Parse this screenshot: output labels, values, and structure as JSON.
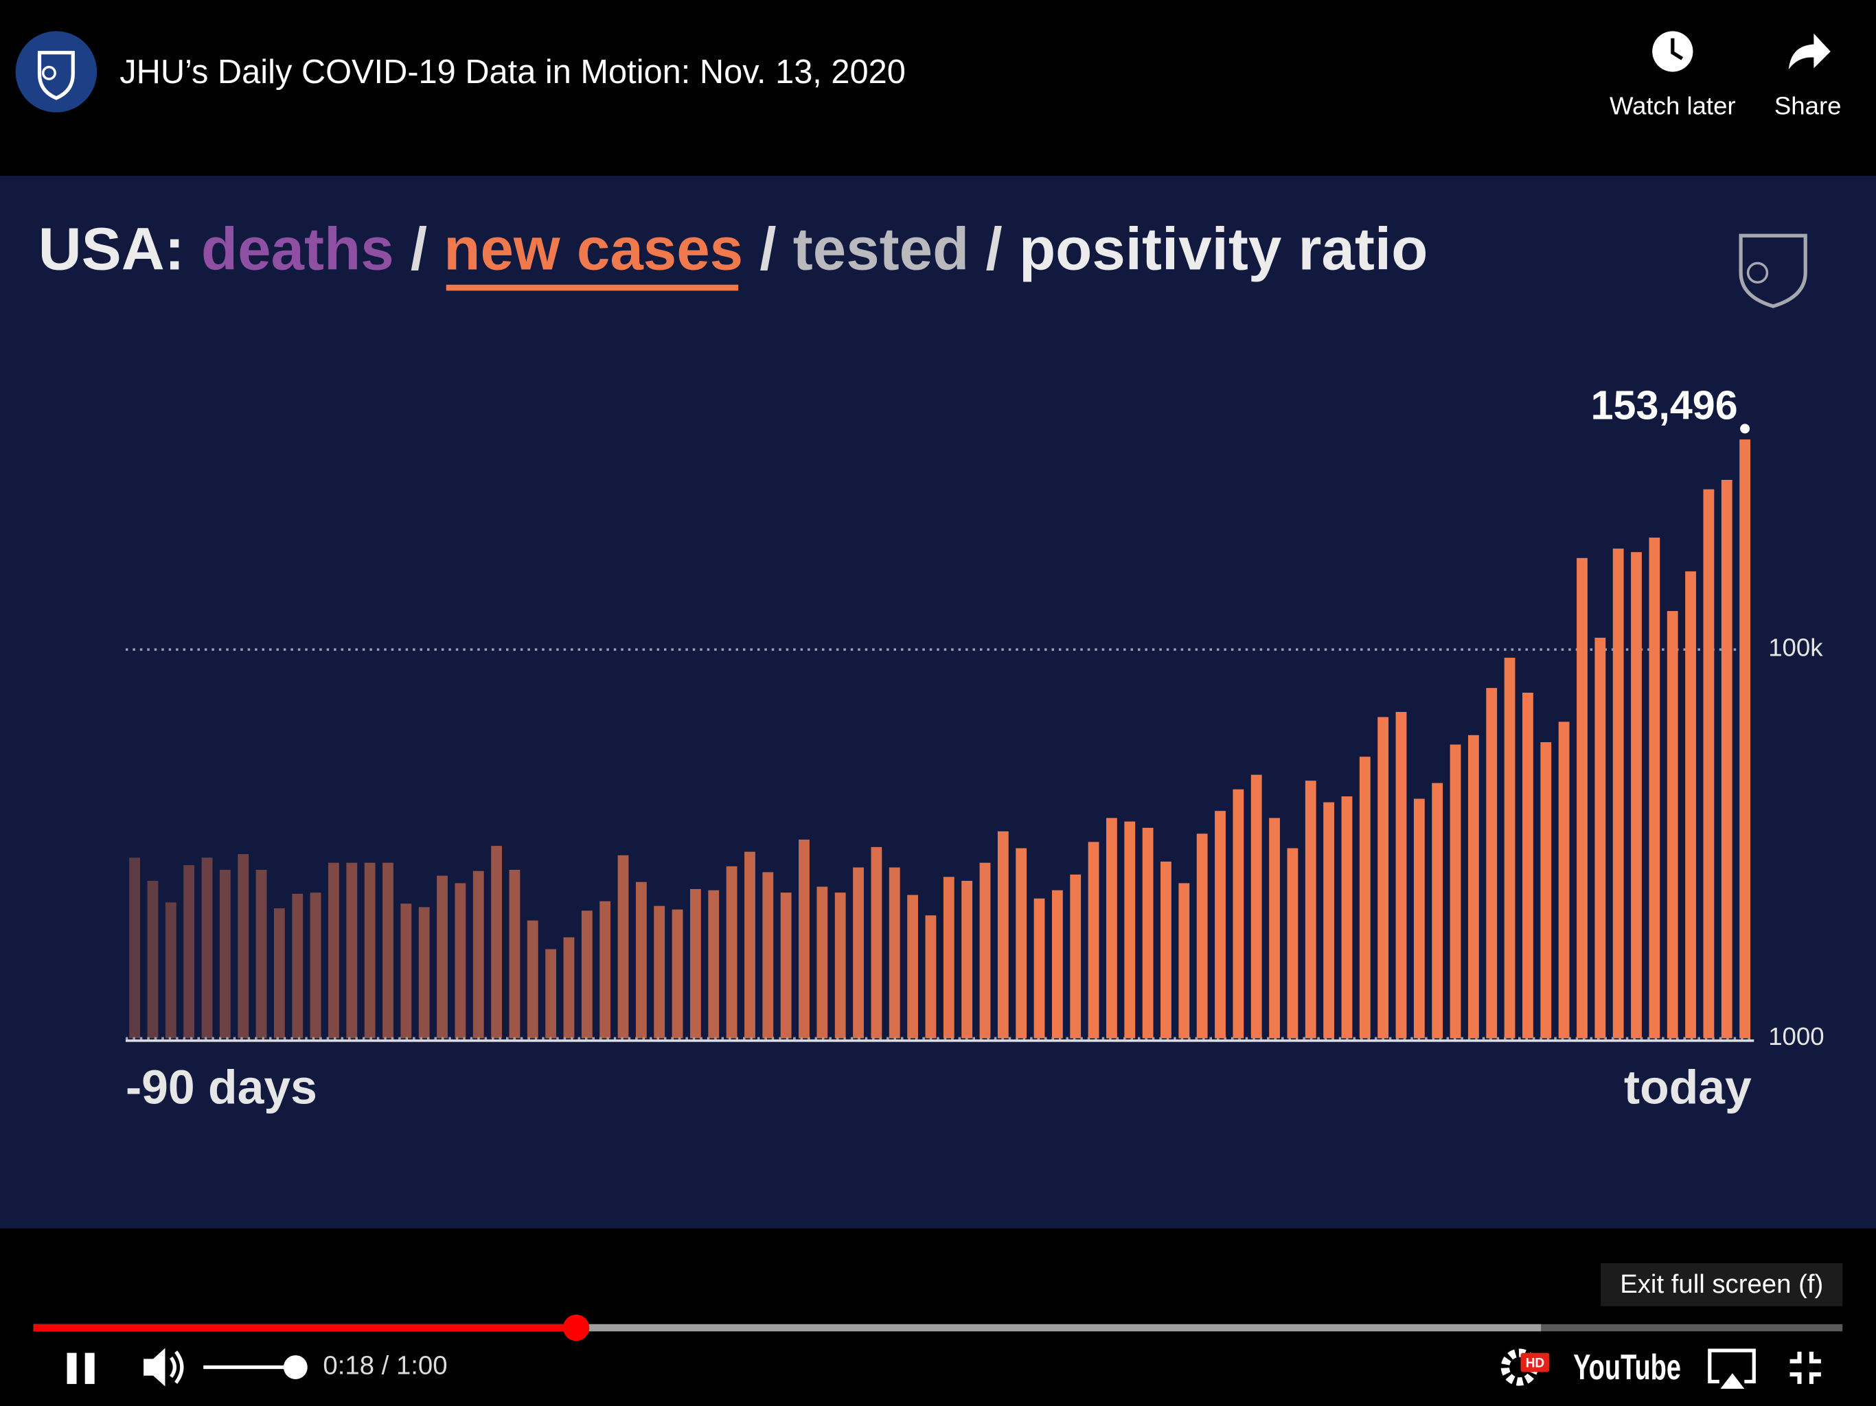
{
  "header": {
    "title": "JHU’s Daily COVID-19 Data in Motion: Nov. 13, 2020",
    "watch_later": "Watch later",
    "share": "Share"
  },
  "chart_data": {
    "type": "bar",
    "title_parts": [
      "USA:",
      "deaths",
      "/",
      "new cases",
      "/",
      "tested",
      "/",
      "positivity ratio"
    ],
    "categories": [
      null,
      null,
      null,
      null,
      null,
      null,
      null,
      null,
      null,
      null,
      null,
      null,
      null,
      null,
      null,
      null,
      null,
      null,
      null,
      null,
      null,
      null,
      null,
      null,
      null,
      null,
      null,
      null,
      null,
      null,
      null,
      null,
      null,
      null,
      null,
      null,
      null,
      null,
      null,
      null,
      null,
      null,
      null,
      null,
      null,
      null,
      null,
      null,
      null,
      null,
      null,
      null,
      null,
      null,
      null,
      null,
      null,
      null,
      null,
      null,
      null,
      null,
      null,
      null,
      null,
      null,
      null,
      null,
      null,
      null,
      null,
      null,
      null,
      null,
      null,
      null,
      null,
      null,
      null,
      null,
      null,
      null,
      null,
      null,
      null,
      null,
      null,
      null,
      null,
      null
    ],
    "values": [
      47000,
      41100,
      35600,
      45100,
      47000,
      43900,
      47900,
      43900,
      34100,
      37800,
      38100,
      45700,
      45700,
      45700,
      45700,
      35300,
      34400,
      42400,
      40500,
      43600,
      50000,
      43900,
      31000,
      23700,
      26700,
      33500,
      35900,
      47600,
      40800,
      34700,
      33800,
      39000,
      38700,
      44800,
      48500,
      43300,
      38100,
      51600,
      39600,
      38100,
      44500,
      49700,
      44500,
      37500,
      32300,
      42100,
      41100,
      45700,
      53700,
      49400,
      36600,
      38700,
      42700,
      51000,
      57100,
      56200,
      54600,
      46000,
      40500,
      53100,
      58900,
      64400,
      68100,
      57100,
      49400,
      66600,
      61100,
      62600,
      72700,
      82800,
      84100,
      62000,
      66000,
      75800,
      78200,
      90200,
      97900,
      89000,
      76400,
      81600,
      123300,
      103000,
      125700,
      124800,
      128500,
      109800,
      119900,
      140800,
      143200,
      153496
    ],
    "color": "#f07a4e",
    "annotation": "153,496",
    "x_range_labels": [
      "-90 days",
      "today"
    ],
    "ylim": [
      1000,
      160000
    ],
    "yticks": [
      1000,
      {
        "value": 100000,
        "label": "100k"
      }
    ],
    "grid": true
  },
  "player": {
    "tooltip": "Exit full screen (f)",
    "time_display": "0:18 / 1:00",
    "played_seconds": 18,
    "buffered_seconds": 50,
    "duration_seconds": 60,
    "hd_badge": "HD",
    "logo": "YouTube"
  }
}
